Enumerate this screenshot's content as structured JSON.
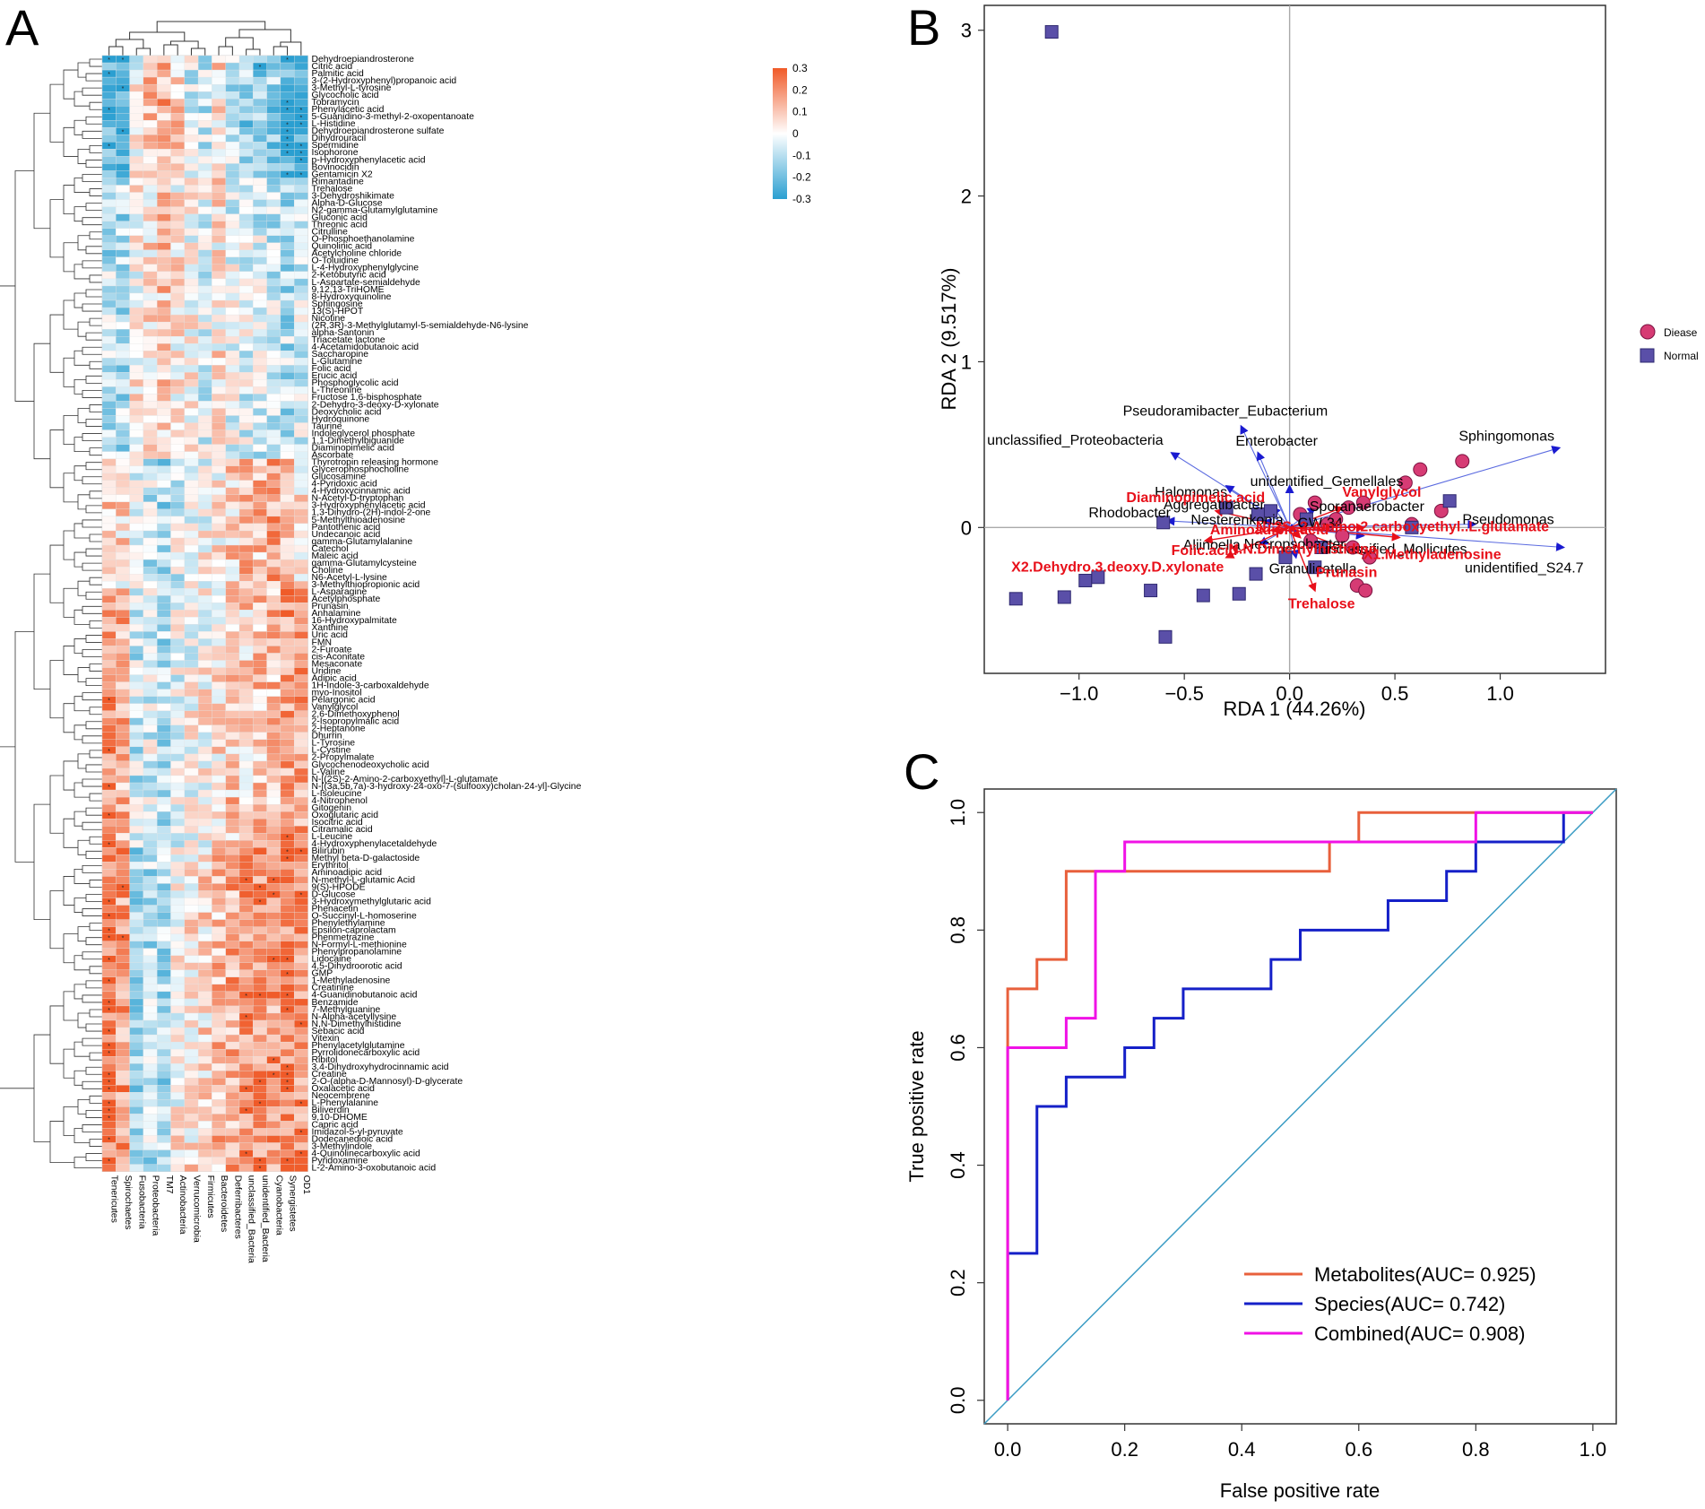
{
  "panels": {
    "A": {
      "label": "A"
    },
    "B": {
      "label": "B"
    },
    "C": {
      "label": "C"
    }
  },
  "chart_data": [
    {
      "panel": "A",
      "type": "heatmap",
      "title": "",
      "value_range": [
        -0.3,
        0.3
      ],
      "colorbar_ticks": [
        "0.3",
        "0.2",
        "0.1",
        "0",
        "-0.1",
        "-0.2",
        "-0.3"
      ],
      "color_low": "#2a9fd1",
      "color_mid": "#ffffff",
      "color_high": "#f05a28",
      "columns": [
        "Tenericutes",
        "Spirochaetes",
        "Fusobacteria",
        "Proteobacteria",
        "TM7",
        "Actinobacteria",
        "Verrucomicrobia",
        "Firmicutes",
        "Bacteroidetes",
        "Deferribacteres",
        "unclassified_Bacteria",
        "unidentified_Bacteria",
        "Cyanobacteria",
        "Synergistetes",
        "OD1"
      ],
      "rows": [
        "Dehydroepiandrosterone",
        "Citric acid",
        "Palmitic acid",
        "3-(2-Hydroxyphenyl)propanoic acid",
        "3-Methyl-L-tyrosine",
        "Glycocholic acid",
        "Tobramycin",
        "Phenylacetic acid",
        "5-Guanidino-3-methyl-2-oxopentanoate",
        "L-Histidine",
        "Dehydroepiandrosterone sulfate",
        "Dihydrouracil",
        "Spermidine",
        "Isophorone",
        "p-Hydroxyphenylacetic acid",
        "Bovinocidin",
        "Gentamicin X2",
        "Rimantadine",
        "Trehalose",
        "3-Dehydroshikimate",
        "Alpha-D-Glucose",
        "N2-gamma-Glutamylglutamine",
        "Gluconic acid",
        "Threonic acid",
        "Citrulline",
        "O-Phosphoethanolamine",
        "Quinolinic acid",
        "Acetylcholine chloride",
        "O-Toluidine",
        "L-4-Hydroxyphenylglycine",
        "2-Ketobutyric acid",
        "L-Aspartate-semialdehyde",
        "9,12,13-TriHOME",
        "8-Hydroxyquinoline",
        "Sphingosine",
        "13(S)-HPOT",
        "Nicotine",
        "(2R,3R)-3-Methylglutamyl-5-semialdehyde-N6-lysine",
        "alpha-Santonin",
        "Triacetate lactone",
        "4-Acetamidobutanoic acid",
        "Saccharopine",
        "L-Glutamine",
        "Folic acid",
        "Erucic acid",
        "Phosphoglycolic acid",
        "L-Threonine",
        "Fructose 1,6-bisphosphate",
        "2-Dehydro-3-deoxy-D-xylonate",
        "Deoxycholic acid",
        "Hydroquinone",
        "Taurine",
        "Indoleglycerol phosphate",
        "1,1-Dimethylbiguanide",
        "Diaminopimelic acid",
        "Ascorbate",
        "Thyrotropin releasing hormone",
        "Glycerophosphocholine",
        "Glucosamine",
        "4-Pyridoxic acid",
        "4-Hydroxycinnamic acid",
        "N-Acetyl-D-tryptophan",
        "3-Hydroxyphenylacetic acid",
        "1,3-Dihydro-(2H)-indol-2-one",
        "5-Methylthioadenosine",
        "Pantothenic acid",
        "Undecanoic acid",
        "gamma-Glutamylalanine",
        "Catechol",
        "Maleic acid",
        "gamma-Glutamylcysteine",
        "Choline",
        "N6-Acetyl-L-lysine",
        "3-Methylthiopropionic acid",
        "L-Asparagine",
        "Acetylphosphate",
        "Prunasin",
        "Anhalamine",
        "16-Hydroxypalmitate",
        "Xanthine",
        "Uric acid",
        "FMN",
        "2-Furoate",
        "cis-Aconitate",
        "Mesaconate",
        "Uridine",
        "Adipic acid",
        "1H-Indole-3-carboxaldehyde",
        "myo-Inositol",
        "Pelargonic acid",
        "Vanylglycol",
        "2,6-Dimethoxyphenol",
        "2-Isopropylmalic acid",
        "2-Heptanone",
        "Dhurrin",
        "L-Tyrosine",
        "L-Cystine",
        "2-Propylmalate",
        "Glycochenodeoxycholic acid",
        "L-Valine",
        "N-[(2S)-2-Amino-2-carboxyethyl]-L-glutamate",
        "N-[(3a,5b,7a)-3-hydroxy-24-oxo-7-(sulfooxy)cholan-24-yl]-Glycine",
        "L-Isoleucine",
        "4-Nitrophenol",
        "Gitogenin",
        "Oxoglutaric acid",
        "Isocitric acid",
        "Citramalic acid",
        "L-Leucine",
        "4-Hydroxyphenylacetaldehyde",
        "Bilirubin",
        "Methyl beta-D-galactoside",
        "Erythritol",
        "Aminoadipic acid",
        "N-methyl-L-glutamic Acid",
        "9(S)-HPODE",
        "D-Glucose",
        "3-Hydroxymethylglutaric acid",
        "Phenacetin",
        "O-Succinyl-L-homoserine",
        "Phenylethylamine",
        "Epsilon-caprolactam",
        "Phenmetrazine",
        "N-Formyl-L-methionine",
        "Phenylpropanolamine",
        "Lidocaine",
        "4,5-Dihydroorotic acid",
        "GMP",
        "1-Methyladenosine",
        "Creatinine",
        "4-Guanidinobutanoic acid",
        "Benzamide",
        "7-Methylguanine",
        "N-Alpha-acetyllysine",
        "N,N-Dimethylhistidine",
        "Sebacic acid",
        "Vitexin",
        "Phenylacetylglutamine",
        "Pyrrolidonecarboxylic acid",
        "Ribitol",
        "3,4-Dihydroxyhydrocinnamic acid",
        "Creatine",
        "2-O-(alpha-D-Mannosyl)-D-glycerate",
        "Oxalacetic acid",
        "Neocembrene",
        "L-Phenylalanine",
        "Biliverdin",
        "9,10-DHOME",
        "Capric acid",
        "Imidazol-5-yl-pyruvate",
        "Dodecanedioic acid",
        "3-Methylindole",
        "4-Quinolinecarboxylic acid",
        "Pyridoxamine",
        "L-2-Amino-3-oxobutanoic acid"
      ],
      "row_groups": [
        {
          "start": 0,
          "end": 17,
          "pattern": [
            -0.25,
            -0.25,
            0.0,
            0.12,
            0.15,
            0.08,
            -0.05,
            -0.08,
            0.06,
            -0.1,
            -0.15,
            -0.18,
            -0.15,
            -0.25,
            -0.28
          ]
        },
        {
          "start": 17,
          "end": 56,
          "pattern": [
            -0.1,
            -0.12,
            0.02,
            0.05,
            0.1,
            0.03,
            0.0,
            -0.04,
            0.04,
            -0.03,
            -0.05,
            -0.06,
            -0.08,
            -0.1,
            -0.05
          ]
        },
        {
          "start": 56,
          "end": 74,
          "pattern": [
            0.12,
            0.06,
            -0.05,
            -0.08,
            -0.12,
            -0.04,
            -0.02,
            0.0,
            0.04,
            0.08,
            0.12,
            0.12,
            0.15,
            0.1,
            0.05
          ]
        },
        {
          "start": 74,
          "end": 110,
          "pattern": [
            0.2,
            0.14,
            -0.08,
            -0.05,
            -0.1,
            -0.03,
            0.0,
            0.02,
            0.05,
            0.1,
            0.08,
            0.1,
            0.12,
            0.18,
            0.18
          ]
        },
        {
          "start": 110,
          "end": 156,
          "pattern": [
            0.25,
            0.18,
            -0.12,
            -0.1,
            -0.12,
            0.02,
            0.05,
            0.06,
            0.12,
            0.15,
            0.2,
            0.2,
            0.18,
            0.22,
            0.2
          ]
        }
      ]
    },
    {
      "panel": "B",
      "type": "scatter",
      "xlabel": "RDA 1 (44.26%)",
      "ylabel": "RDA 2 (9.517%)",
      "xlim": [
        -1.45,
        1.5
      ],
      "ylim": [
        -0.88,
        3.15
      ],
      "xticks": [
        -1.0,
        -0.5,
        0.0,
        0.5,
        1.0
      ],
      "xtick_labels": [
        "−1.0",
        "−0.5",
        "0.0",
        "0.5",
        "1.0"
      ],
      "yticks": [
        0,
        1,
        2,
        3
      ],
      "ytick_labels": [
        "0",
        "1",
        "2",
        "3"
      ],
      "legend": [
        {
          "name": "Diease",
          "shape": "circle",
          "color": "#d63b74"
        },
        {
          "name": "Normal",
          "shape": "square",
          "color": "#5a4fa8"
        }
      ],
      "groups": [
        {
          "name": "Diease",
          "points": [
            [
              0.82,
              0.4
            ],
            [
              0.62,
              0.35
            ],
            [
              0.55,
              0.27
            ],
            [
              0.72,
              0.1
            ],
            [
              0.58,
              0.02
            ],
            [
              0.35,
              0.15
            ],
            [
              0.28,
              0.12
            ],
            [
              0.22,
              0.05
            ],
            [
              0.18,
              0.02
            ],
            [
              0.12,
              0.15
            ],
            [
              0.05,
              0.08
            ],
            [
              0.3,
              -0.12
            ],
            [
              0.38,
              -0.18
            ],
            [
              0.32,
              -0.35
            ],
            [
              0.36,
              -0.38
            ],
            [
              0.25,
              -0.05
            ],
            [
              0.1,
              -0.08
            ]
          ]
        },
        {
          "name": "Normal",
          "points": [
            [
              -1.13,
              2.99
            ],
            [
              -1.3,
              -0.43
            ],
            [
              -1.07,
              -0.42
            ],
            [
              -0.97,
              -0.32
            ],
            [
              -0.91,
              -0.3
            ],
            [
              -0.66,
              -0.38
            ],
            [
              -0.59,
              -0.66
            ],
            [
              -0.41,
              -0.41
            ],
            [
              -0.24,
              -0.4
            ],
            [
              -0.16,
              -0.28
            ],
            [
              -0.02,
              -0.18
            ],
            [
              0.12,
              -0.24
            ],
            [
              -0.6,
              0.03
            ],
            [
              -0.09,
              0.1
            ],
            [
              -0.15,
              0.08
            ],
            [
              0.76,
              0.16
            ],
            [
              0.58,
              0.0
            ],
            [
              0.15,
              -0.12
            ],
            [
              0.08,
              0.05
            ],
            [
              -0.3,
              0.12
            ]
          ]
        }
      ],
      "species_arrows": [
        {
          "name": "Sphingomonas",
          "x": 1.28,
          "y": 0.48
        },
        {
          "name": "unclassified_Proteobacteria",
          "x": -0.56,
          "y": 0.45
        },
        {
          "name": "Pseudoramibacter_Eubacterium",
          "x": -0.23,
          "y": 0.61
        },
        {
          "name": "Enterobacter",
          "x": -0.15,
          "y": 0.45
        },
        {
          "name": "Halomonas",
          "x": -0.3,
          "y": 0.25
        },
        {
          "name": "unidentified_Gemellales",
          "x": 0.0,
          "y": 0.25
        },
        {
          "name": "Aggregatibacter",
          "x": -0.08,
          "y": 0.12
        },
        {
          "name": "Sporanaerobacter",
          "x": 0.12,
          "y": 0.12
        },
        {
          "name": "Rhodobacter",
          "x": -0.58,
          "y": 0.04
        },
        {
          "name": "Nesterenkonia",
          "x": -0.12,
          "y": 0.04
        },
        {
          "name": "GW-34",
          "x": 0.08,
          "y": 0.02
        },
        {
          "name": "Pseudomonas",
          "x": 0.88,
          "y": 0.02
        },
        {
          "name": "Necropsobacter",
          "x": 0.03,
          "y": -0.02
        },
        {
          "name": "unclassified_Mollicutes",
          "x": 0.35,
          "y": -0.05
        },
        {
          "name": "unidentified_S24.7",
          "x": 1.3,
          "y": -0.12
        },
        {
          "name": "Aliinoella",
          "x": -0.14,
          "y": -0.1
        },
        {
          "name": "Granulicatella",
          "x": 0.03,
          "y": -0.18
        }
      ],
      "metabolite_arrows": [
        {
          "name": "Diaminopimelic.acid",
          "x": -0.35,
          "y": 0.1
        },
        {
          "name": "Vanylglycol",
          "x": 0.25,
          "y": 0.12
        },
        {
          "name": "Aminoadipic.acid",
          "x": -0.08,
          "y": -0.02
        },
        {
          "name": "N..2S..2.Amino.2.carboxyethyl..L.glutamate",
          "x": 0.35,
          "y": 0.0
        },
        {
          "name": "Folic.acid",
          "x": -0.4,
          "y": -0.08
        },
        {
          "name": "N.N.Dimethylhistidine",
          "x": 0.05,
          "y": -0.06
        },
        {
          "name": "X1.Methyladenosine",
          "x": 0.52,
          "y": -0.06
        },
        {
          "name": "X2.Dehydro.3.deoxy.D.xylonate",
          "x": -0.3,
          "y": -0.18
        },
        {
          "name": "Prunasin",
          "x": 0.38,
          "y": -0.18
        },
        {
          "name": "Trehalose",
          "x": 0.12,
          "y": -0.38
        }
      ]
    },
    {
      "panel": "C",
      "type": "line",
      "xlabel": "False positive rate",
      "ylabel": "True positive rate",
      "xlim": [
        -0.04,
        1.04
      ],
      "ylim": [
        -0.04,
        1.04
      ],
      "xticks": [
        0.0,
        0.2,
        0.4,
        0.6,
        0.8,
        1.0
      ],
      "xtick_labels": [
        "0.0",
        "0.2",
        "0.4",
        "0.6",
        "0.8",
        "1.0"
      ],
      "yticks": [
        0.0,
        0.2,
        0.4,
        0.6,
        0.8,
        1.0
      ],
      "ytick_labels": [
        "0.0",
        "0.2",
        "0.4",
        "0.6",
        "0.8",
        "1.0"
      ],
      "series": [
        {
          "name": "Metabolites(AUC= 0.925)",
          "color": "#e8603c",
          "x": [
            0,
            0,
            0.05,
            0.05,
            0.1,
            0.1,
            0.55,
            0.55,
            0.6,
            0.6,
            1.0
          ],
          "y": [
            0,
            0.7,
            0.7,
            0.75,
            0.75,
            0.9,
            0.9,
            0.95,
            0.95,
            1.0,
            1.0
          ]
        },
        {
          "name": "Species(AUC= 0.742)",
          "color": "#1520c8",
          "x": [
            0,
            0,
            0.05,
            0.05,
            0.1,
            0.1,
            0.2,
            0.2,
            0.25,
            0.25,
            0.3,
            0.3,
            0.45,
            0.45,
            0.5,
            0.5,
            0.65,
            0.65,
            0.75,
            0.75,
            0.8,
            0.8,
            0.95,
            0.95,
            1.0
          ],
          "y": [
            0,
            0.25,
            0.25,
            0.5,
            0.5,
            0.55,
            0.55,
            0.6,
            0.6,
            0.65,
            0.65,
            0.7,
            0.7,
            0.75,
            0.75,
            0.8,
            0.8,
            0.85,
            0.85,
            0.9,
            0.9,
            0.95,
            0.95,
            1.0,
            1.0
          ]
        },
        {
          "name": "Combined(AUC= 0.908)",
          "color": "#f012e6",
          "x": [
            0,
            0,
            0.1,
            0.1,
            0.15,
            0.15,
            0.2,
            0.2,
            0.8,
            0.8,
            1.0
          ],
          "y": [
            0,
            0.6,
            0.6,
            0.65,
            0.65,
            0.9,
            0.9,
            0.95,
            0.95,
            1.0,
            1.0
          ]
        }
      ],
      "diagonal_color": "#3b9cc4"
    }
  ]
}
